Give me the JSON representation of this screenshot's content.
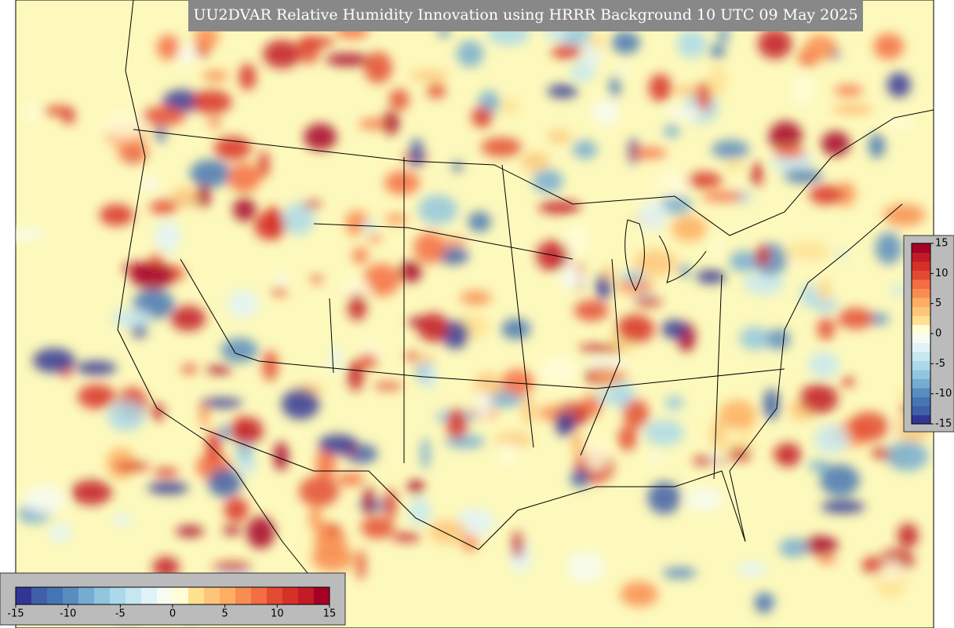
{
  "title": "UU2DVAR Relative Humidity Innovation using HRRR Background 10 UTC 09 May 2025",
  "colormap": [
    "#313695",
    "#3f5fa8",
    "#4575b4",
    "#5b8cc0",
    "#74add1",
    "#92c5de",
    "#abd9e9",
    "#c6e7f0",
    "#e0f3f8",
    "#f7fbf0",
    "#fffdd8",
    "#fee090",
    "#fdc57a",
    "#fdae61",
    "#f88d52",
    "#f46d43",
    "#e34a33",
    "#d73027",
    "#c21a27",
    "#a50026"
  ],
  "colorbars": [
    {
      "orientation": "horizontal",
      "lim": [
        -15,
        15
      ],
      "ticks": [
        -15,
        -10,
        -5,
        0,
        5,
        10,
        15
      ]
    },
    {
      "orientation": "vertical",
      "lim": [
        -15,
        15
      ],
      "ticks": [
        -15,
        -10,
        -5,
        0,
        5,
        10,
        15
      ]
    }
  ]
}
